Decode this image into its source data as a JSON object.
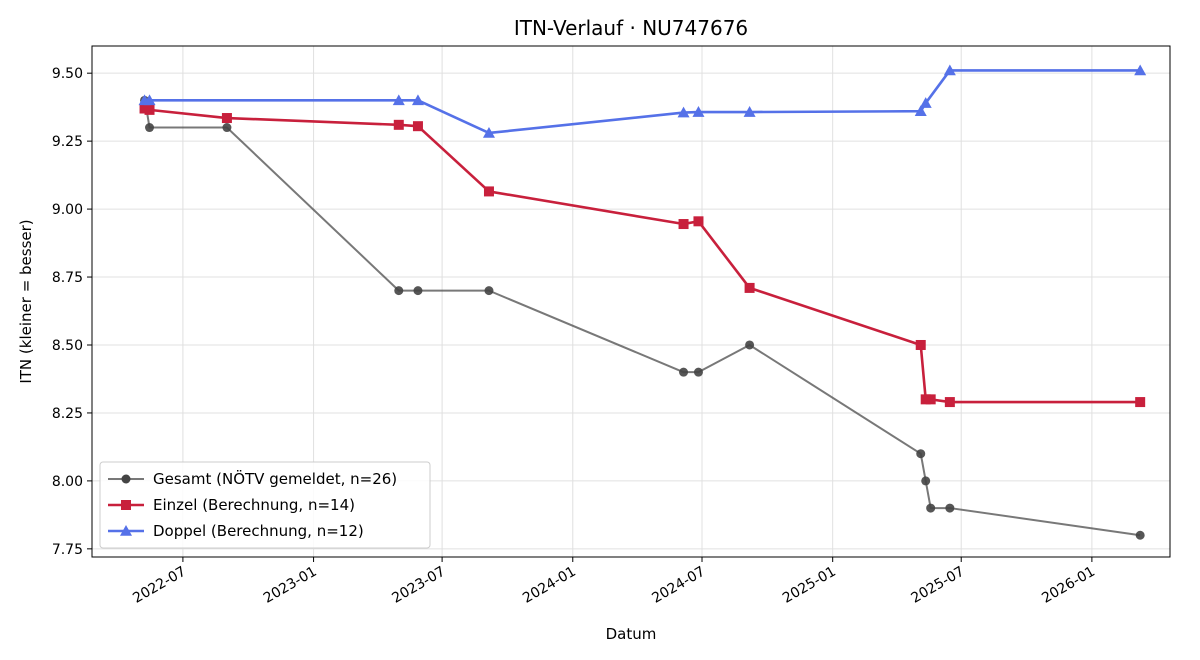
{
  "chart_data": {
    "type": "line",
    "title": "ITN-Verlauf · NU747676",
    "xlabel": "Datum",
    "ylabel": "ITN  (kleiner = besser)",
    "ylim": [
      7.72,
      9.6
    ],
    "xlim": [
      "2022-02-23",
      "2026-04-21"
    ],
    "x_ticks": [
      "2022-07",
      "2023-01",
      "2023-07",
      "2024-01",
      "2024-07",
      "2025-01",
      "2025-07",
      "2026-01"
    ],
    "y_ticks": [
      "7.75",
      "8.00",
      "8.25",
      "8.50",
      "8.75",
      "9.00",
      "9.25",
      "9.50"
    ],
    "grid": true,
    "legend_position": "lower-left",
    "series": [
      {
        "name": "Gesamt (NÖTV gemeldet, n=26)",
        "color": "#444444",
        "marker": "circle",
        "points": [
          {
            "x": "2022-05-08",
            "y": 9.4
          },
          {
            "x": "2022-05-10",
            "y": 9.38
          },
          {
            "x": "2022-05-15",
            "y": 9.3
          },
          {
            "x": "2022-09-01",
            "y": 9.3
          },
          {
            "x": "2023-05-01",
            "y": 8.7
          },
          {
            "x": "2023-05-28",
            "y": 8.7
          },
          {
            "x": "2023-09-05",
            "y": 8.7
          },
          {
            "x": "2024-06-05",
            "y": 8.4
          },
          {
            "x": "2024-06-26",
            "y": 8.4
          },
          {
            "x": "2024-09-06",
            "y": 8.5
          },
          {
            "x": "2025-05-05",
            "y": 8.1
          },
          {
            "x": "2025-05-12",
            "y": 8.0
          },
          {
            "x": "2025-05-19",
            "y": 7.9
          },
          {
            "x": "2025-06-15",
            "y": 7.9
          },
          {
            "x": "2026-03-10",
            "y": 7.8
          }
        ]
      },
      {
        "name": "Einzel (Berechnung, n=14)",
        "color": "#c8203c",
        "marker": "square",
        "points": [
          {
            "x": "2022-05-08",
            "y": 9.37
          },
          {
            "x": "2022-05-15",
            "y": 9.365
          },
          {
            "x": "2022-09-01",
            "y": 9.335
          },
          {
            "x": "2023-05-01",
            "y": 9.31
          },
          {
            "x": "2023-05-28",
            "y": 9.305
          },
          {
            "x": "2023-09-05",
            "y": 9.065
          },
          {
            "x": "2024-06-05",
            "y": 8.945
          },
          {
            "x": "2024-06-26",
            "y": 8.955
          },
          {
            "x": "2024-09-06",
            "y": 8.71
          },
          {
            "x": "2025-05-05",
            "y": 8.5
          },
          {
            "x": "2025-05-12",
            "y": 8.3
          },
          {
            "x": "2025-05-19",
            "y": 8.3
          },
          {
            "x": "2025-06-15",
            "y": 8.29
          },
          {
            "x": "2026-03-10",
            "y": 8.29
          }
        ]
      },
      {
        "name": "Doppel (Berechnung, n=12)",
        "color": "#5571e8",
        "marker": "triangle",
        "points": [
          {
            "x": "2022-05-08",
            "y": 9.4
          },
          {
            "x": "2022-05-15",
            "y": 9.4
          },
          {
            "x": "2023-05-01",
            "y": 9.4
          },
          {
            "x": "2023-05-28",
            "y": 9.4
          },
          {
            "x": "2023-09-05",
            "y": 9.28
          },
          {
            "x": "2024-06-05",
            "y": 9.355
          },
          {
            "x": "2024-06-26",
            "y": 9.357
          },
          {
            "x": "2024-09-06",
            "y": 9.357
          },
          {
            "x": "2025-05-05",
            "y": 9.36
          },
          {
            "x": "2025-05-12",
            "y": 9.39
          },
          {
            "x": "2025-06-15",
            "y": 9.51
          },
          {
            "x": "2026-03-10",
            "y": 9.51
          }
        ]
      }
    ]
  }
}
